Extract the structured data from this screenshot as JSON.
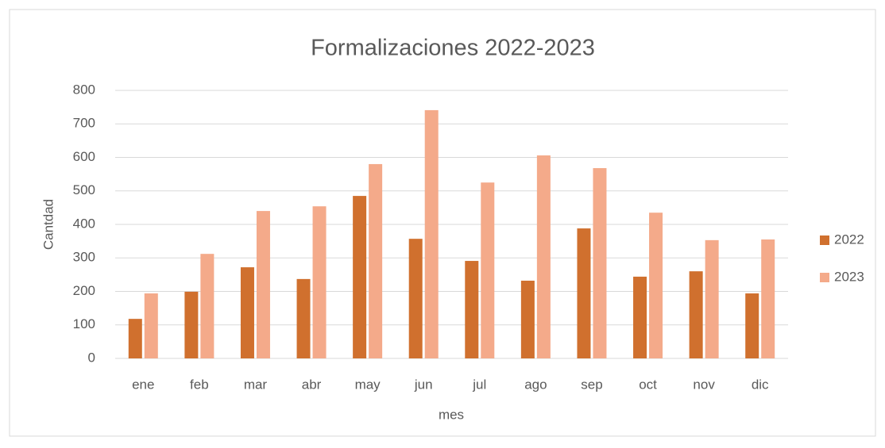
{
  "chart_data": {
    "type": "bar",
    "title": "Formalizaciones 2022-2023",
    "x_label": "mes",
    "y_label": "Cantdad",
    "categories": [
      "ene",
      "feb",
      "mar",
      "abr",
      "may",
      "jun",
      "jul",
      "ago",
      "sep",
      "oct",
      "nov",
      "dic"
    ],
    "series": [
      {
        "name": "2022",
        "color": "#d0702e",
        "values": [
          118,
          199,
          272,
          237,
          485,
          357,
          291,
          232,
          388,
          244,
          260,
          194
        ]
      },
      {
        "name": "2023",
        "color": "#f4aa8a",
        "values": [
          194,
          312,
          440,
          454,
          580,
          741,
          525,
          606,
          568,
          435,
          353,
          355
        ]
      }
    ],
    "ylim": [
      0,
      800
    ],
    "yticks": [
      0,
      100,
      200,
      300,
      400,
      500,
      600,
      700,
      800
    ],
    "grid": true,
    "legend": "right"
  }
}
